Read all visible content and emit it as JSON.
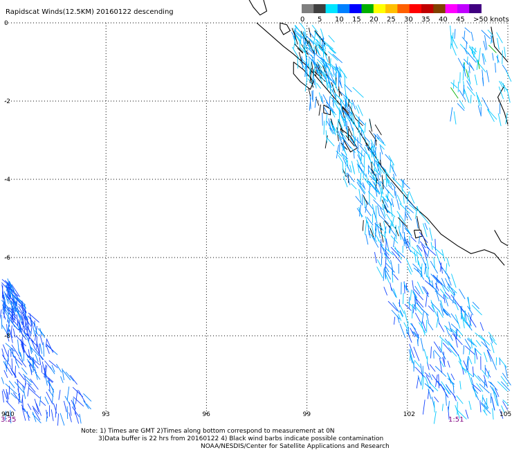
{
  "title": "Rapidscat Winds(12.5KM) 20160122 descending",
  "colorbar": {
    "labels": [
      "0",
      "5",
      "10",
      "15",
      "20",
      "25",
      "30",
      "35",
      "40",
      "45",
      ">50 knots"
    ],
    "colors": [
      "#7f7f7f",
      "#3f3f3f",
      "#00e5ff",
      "#0080ff",
      "#0000ff",
      "#00b000",
      "#ffff00",
      "#ffbf00",
      "#ff6000",
      "#ff0000",
      "#c00000",
      "#804000",
      "#ff00ff",
      "#c000ff",
      "#400080"
    ]
  },
  "map": {
    "lon_range": [
      90,
      105
    ],
    "lat_range": [
      -10,
      0
    ],
    "x_ticks": [
      "90",
      "93",
      "96",
      "99",
      "102",
      "105"
    ],
    "y_ticks": [
      "0",
      "-2",
      "-4",
      "-6",
      "-8",
      "-10"
    ],
    "grid": "dotted"
  },
  "times": {
    "left": "3:25",
    "right": "1:51"
  },
  "notes": {
    "line1": "Note: 1) Times are GMT 2)Times along bottom correspond to measurement at 0N",
    "line2": "3)Data buffer is 22 hrs from 20160122 4) Black wind barbs indicate possible contamination",
    "line3": "NOAA/NESDIS/Center for Satellite Applications and Research"
  },
  "barb_colors": {
    "light": "#00c8ff",
    "medium": "#0080ff",
    "dark": "#1040ff",
    "contaminated": "#000000",
    "green": "#00b000"
  }
}
